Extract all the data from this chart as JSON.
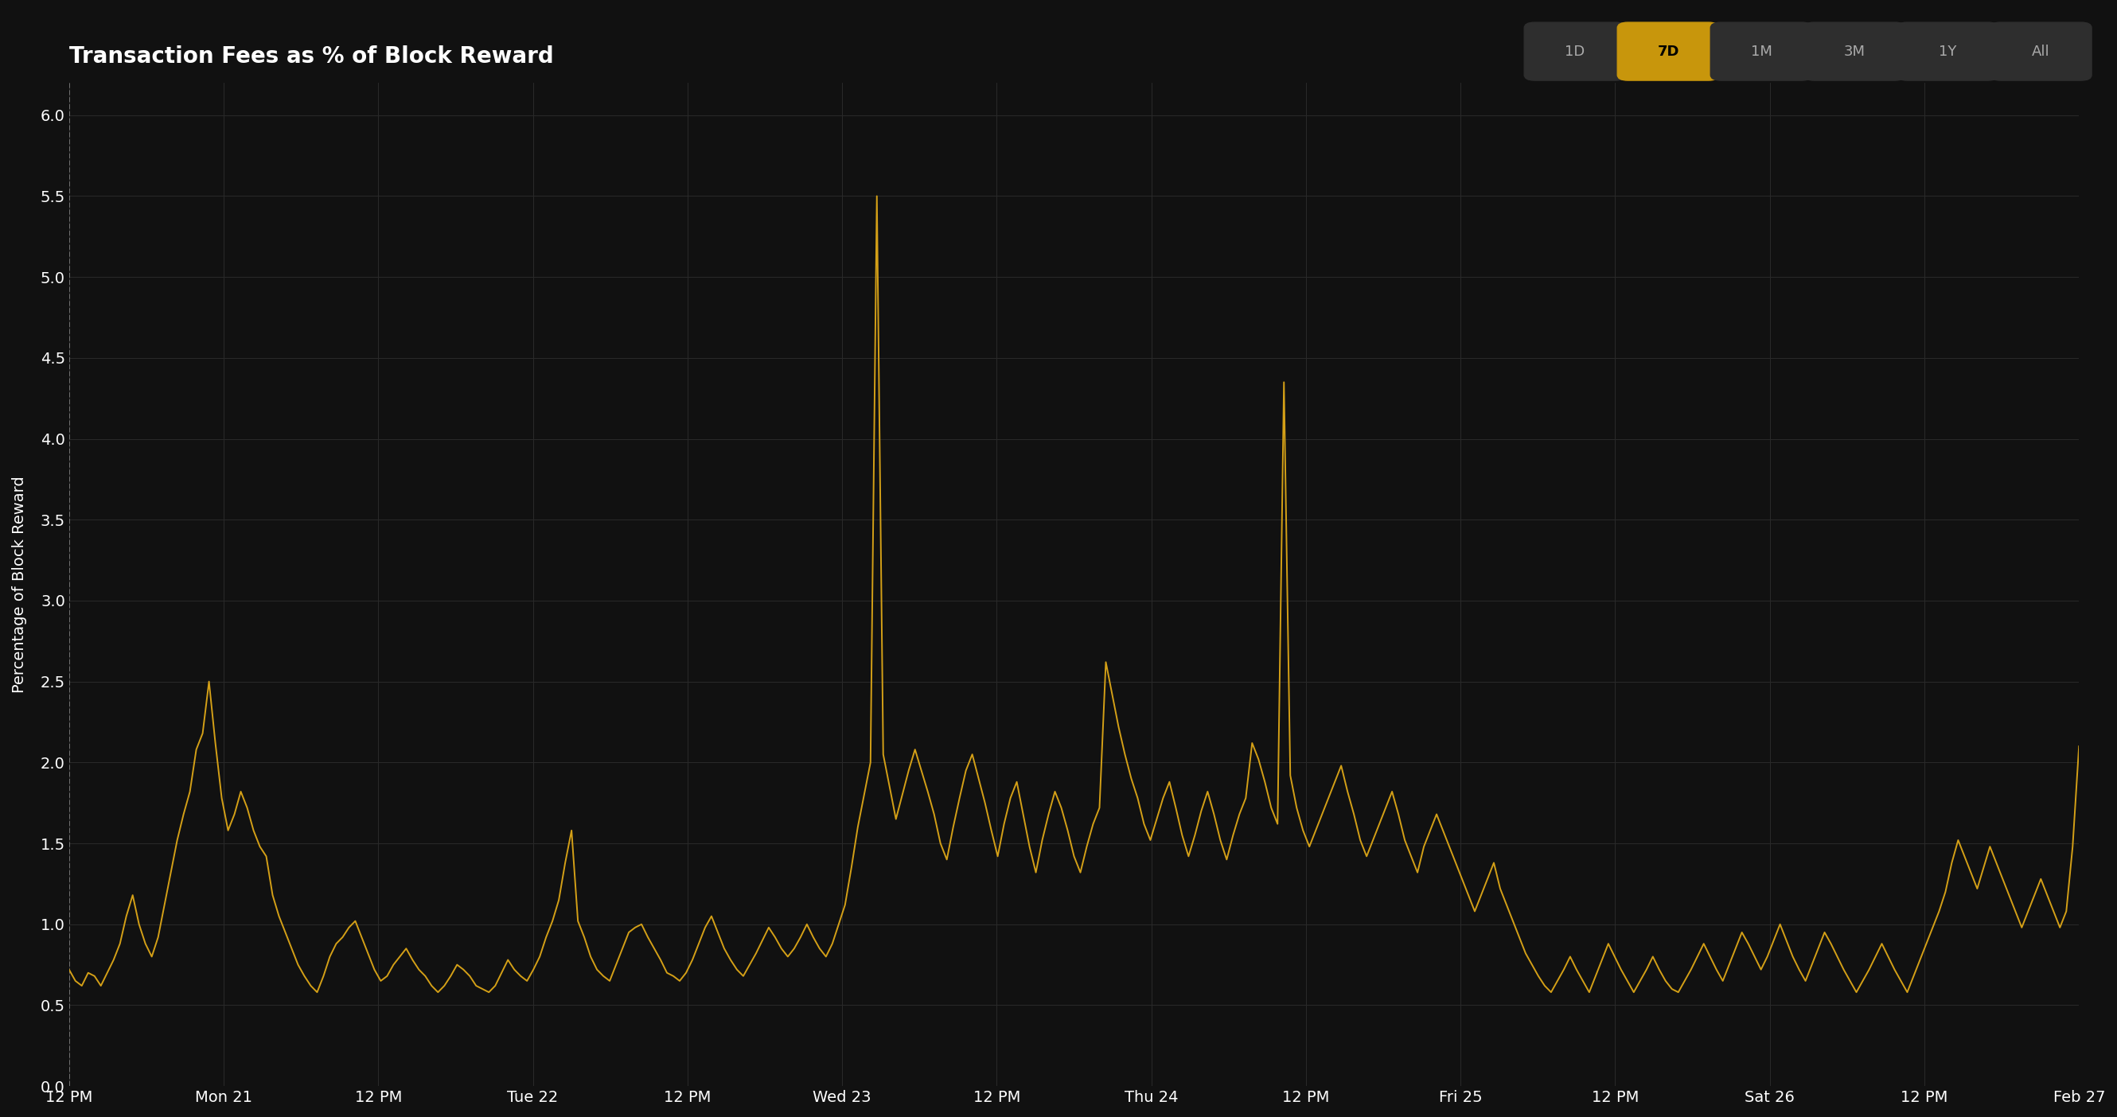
{
  "title": "Transaction Fees as % of Block Reward",
  "ylabel": "Percentage of Block Reward",
  "background_color": "#111111",
  "line_color": "#d4a017",
  "grid_color": "#2a2a2a",
  "text_color": "#ffffff",
  "ylim": [
    0.0,
    6.2
  ],
  "yticks": [
    0.0,
    0.5,
    1.0,
    1.5,
    2.0,
    2.5,
    3.0,
    3.5,
    4.0,
    4.5,
    5.0,
    5.5,
    6.0
  ],
  "x_labels": [
    "12 PM",
    "Mon 21",
    "12 PM",
    "Tue 22",
    "12 PM",
    "Wed 23",
    "12 PM",
    "Thu 24",
    "12 PM",
    "Fri 25",
    "12 PM",
    "Sat 26",
    "12 PM",
    "Feb 27"
  ],
  "x_tick_indices": [
    0,
    1,
    2,
    3,
    4,
    5,
    6,
    7,
    8,
    9,
    10,
    11,
    12,
    13
  ],
  "button_labels": [
    "1D",
    "7D",
    "1M",
    "3M",
    "1Y",
    "All"
  ],
  "active_button": "7D",
  "title_fontsize": 20,
  "axis_fontsize": 14,
  "tick_fontsize": 14,
  "y_values": [
    0.72,
    0.65,
    0.62,
    0.7,
    0.68,
    0.62,
    0.7,
    0.78,
    0.88,
    1.05,
    1.18,
    1.0,
    0.88,
    0.8,
    0.92,
    1.12,
    1.32,
    1.52,
    1.68,
    1.82,
    2.08,
    2.18,
    2.5,
    2.12,
    1.78,
    1.58,
    1.68,
    1.82,
    1.72,
    1.58,
    1.48,
    1.42,
    1.18,
    1.05,
    0.95,
    0.85,
    0.75,
    0.68,
    0.62,
    0.58,
    0.68,
    0.8,
    0.88,
    0.92,
    0.98,
    1.02,
    0.92,
    0.82,
    0.72,
    0.65,
    0.68,
    0.75,
    0.8,
    0.85,
    0.78,
    0.72,
    0.68,
    0.62,
    0.58,
    0.62,
    0.68,
    0.75,
    0.72,
    0.68,
    0.62,
    0.6,
    0.58,
    0.62,
    0.7,
    0.78,
    0.72,
    0.68,
    0.65,
    0.72,
    0.8,
    0.92,
    1.02,
    1.15,
    1.38,
    1.58,
    1.02,
    0.92,
    0.8,
    0.72,
    0.68,
    0.65,
    0.75,
    0.85,
    0.95,
    0.98,
    1.0,
    0.92,
    0.85,
    0.78,
    0.7,
    0.68,
    0.65,
    0.7,
    0.78,
    0.88,
    0.98,
    1.05,
    0.95,
    0.85,
    0.78,
    0.72,
    0.68,
    0.75,
    0.82,
    0.9,
    0.98,
    0.92,
    0.85,
    0.8,
    0.85,
    0.92,
    1.0,
    0.92,
    0.85,
    0.8,
    0.88,
    1.0,
    1.12,
    1.35,
    1.6,
    1.8,
    2.0,
    5.5,
    2.05,
    1.85,
    1.65,
    1.8,
    1.95,
    2.08,
    1.95,
    1.82,
    1.68,
    1.5,
    1.4,
    1.6,
    1.78,
    1.95,
    2.05,
    1.9,
    1.75,
    1.58,
    1.42,
    1.62,
    1.78,
    1.88,
    1.68,
    1.48,
    1.32,
    1.52,
    1.68,
    1.82,
    1.72,
    1.58,
    1.42,
    1.32,
    1.48,
    1.62,
    1.72,
    2.62,
    2.42,
    2.22,
    2.05,
    1.9,
    1.78,
    1.62,
    1.52,
    1.65,
    1.78,
    1.88,
    1.72,
    1.55,
    1.42,
    1.55,
    1.7,
    1.82,
    1.68,
    1.52,
    1.4,
    1.55,
    1.68,
    1.78,
    2.12,
    2.02,
    1.88,
    1.72,
    1.62,
    4.35,
    1.92,
    1.72,
    1.58,
    1.48,
    1.58,
    1.68,
    1.78,
    1.88,
    1.98,
    1.82,
    1.68,
    1.52,
    1.42,
    1.52,
    1.62,
    1.72,
    1.82,
    1.68,
    1.52,
    1.42,
    1.32,
    1.48,
    1.58,
    1.68,
    1.58,
    1.48,
    1.38,
    1.28,
    1.18,
    1.08,
    1.18,
    1.28,
    1.38,
    1.22,
    1.12,
    1.02,
    0.92,
    0.82,
    0.75,
    0.68,
    0.62,
    0.58,
    0.65,
    0.72,
    0.8,
    0.72,
    0.65,
    0.58,
    0.68,
    0.78,
    0.88,
    0.8,
    0.72,
    0.65,
    0.58,
    0.65,
    0.72,
    0.8,
    0.72,
    0.65,
    0.6,
    0.58,
    0.65,
    0.72,
    0.8,
    0.88,
    0.8,
    0.72,
    0.65,
    0.75,
    0.85,
    0.95,
    0.88,
    0.8,
    0.72,
    0.8,
    0.9,
    1.0,
    0.9,
    0.8,
    0.72,
    0.65,
    0.75,
    0.85,
    0.95,
    0.88,
    0.8,
    0.72,
    0.65,
    0.58,
    0.65,
    0.72,
    0.8,
    0.88,
    0.8,
    0.72,
    0.65,
    0.58,
    0.68,
    0.78,
    0.88,
    0.98,
    1.08,
    1.2,
    1.38,
    1.52,
    1.42,
    1.32,
    1.22,
    1.35,
    1.48,
    1.38,
    1.28,
    1.18,
    1.08,
    0.98,
    1.08,
    1.18,
    1.28,
    1.18,
    1.08,
    0.98,
    1.08,
    1.48,
    2.1
  ]
}
